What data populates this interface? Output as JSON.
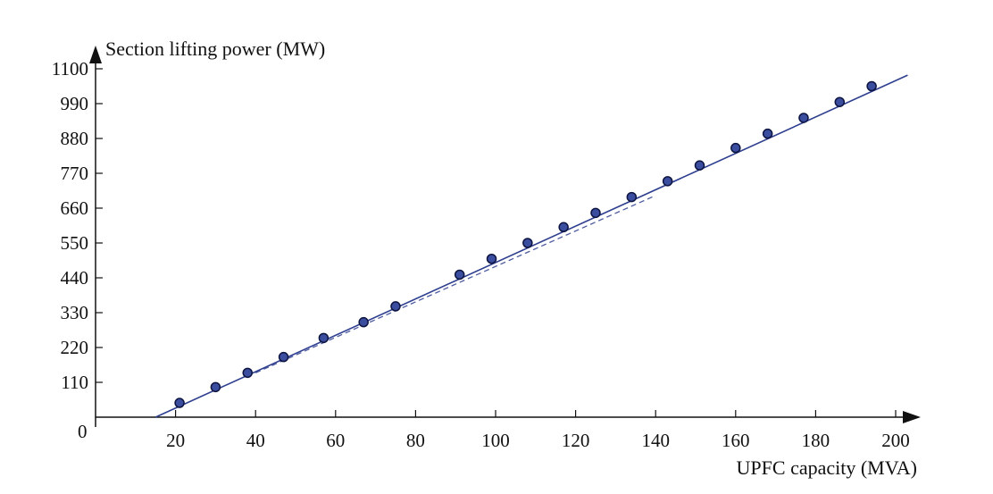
{
  "chart_data": {
    "type": "scatter",
    "xlabel": "UPFC capacity (MVA)",
    "ylabel": "Section lifting power (MW)",
    "origin_label": "0",
    "xlim": [
      0,
      205
    ],
    "ylim": [
      0,
      1100
    ],
    "x_ticks": [
      20,
      40,
      60,
      80,
      100,
      120,
      140,
      160,
      180,
      200
    ],
    "x_tick_labels": [
      "20",
      "40",
      "60",
      "80",
      "100",
      "120",
      "140",
      "160",
      "180",
      "200"
    ],
    "y_ticks": [
      110,
      220,
      330,
      440,
      550,
      660,
      770,
      880,
      990,
      1100
    ],
    "y_tick_labels": [
      "110",
      "220",
      "330",
      "440",
      "550",
      "660",
      "770",
      "880",
      "990",
      "1100"
    ],
    "grid": false,
    "colors": {
      "points": "#3a4d9e",
      "point_outline": "#0d1440",
      "fit_line": "#2f3f8f",
      "axis": "#111111"
    },
    "series": [
      {
        "x": [
          21,
          30,
          38,
          47,
          57,
          67,
          75,
          91,
          99,
          108,
          117,
          125,
          134,
          143,
          151,
          160,
          168,
          177,
          186,
          194
        ],
        "y": [
          45,
          95,
          140,
          190,
          250,
          300,
          350,
          450,
          500,
          550,
          600,
          645,
          695,
          745,
          795,
          850,
          895,
          945,
          995,
          1045
        ]
      }
    ],
    "fit_line": {
      "x": [
        15,
        203
      ],
      "y": [
        0,
        1080
      ]
    },
    "fit_line_dashed": {
      "x": [
        40,
        140
      ],
      "y": [
        140,
        700
      ]
    }
  }
}
